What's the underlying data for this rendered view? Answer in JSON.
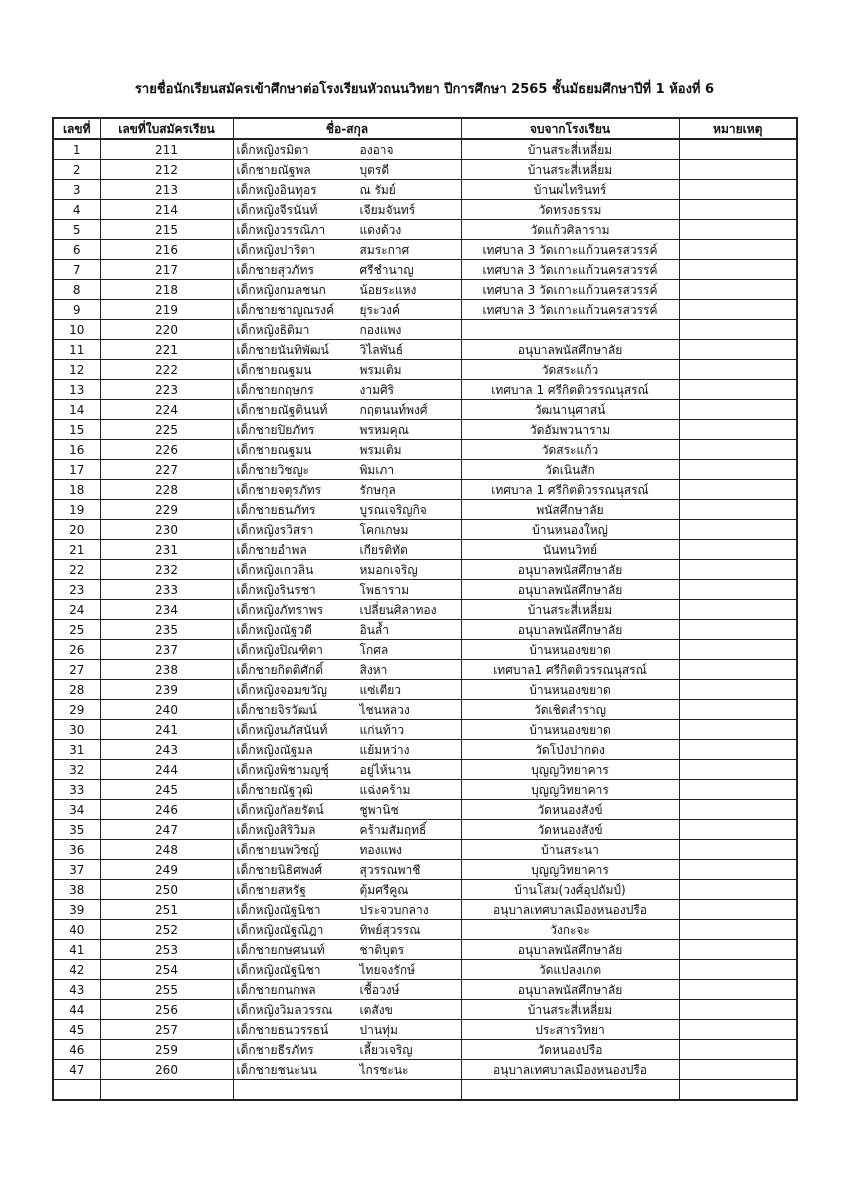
{
  "title": "รายชื่อนักเรียนสมัครเข้าศึกษาต่อโรงเรียนหัวถนนวิทยา  ปีการศึกษา 2565  ชั้นมัธยมศึกษาปีที่  1 ห้องที่ 6",
  "headers": [
    "เลขที่",
    "เลขที่ใบสมัครเรียน",
    "ชื่อ-สกุล",
    "จบจากโรงเรียน",
    "หมายเหตุ"
  ],
  "rows": [
    [
      "1",
      "211",
      "เด็กหญิงรมิตา",
      "องอาจ",
      "บ้านสระสี่เหลี่ยม",
      ""
    ],
    [
      "2",
      "212",
      "เด็กชายณัฐพล",
      "บุตรดี",
      "บ้านสระสี่เหลี่ยม",
      ""
    ],
    [
      "3",
      "213",
      "เด็กหญิงอินทุอร",
      "ณ รัมย์",
      "บ้านผไทรินทร์",
      ""
    ],
    [
      "4",
      "214",
      "เด็กหญิงจีรนันท์",
      "เจียมจันทร์",
      "วัดทรงธรรม",
      ""
    ],
    [
      "5",
      "215",
      "เด็กหญิงวรรณิภา",
      "แดงด้วง",
      "วัดแก้วศิลาราม",
      ""
    ],
    [
      "6",
      "216",
      "เด็กหญิงปาริตา",
      "สมระกาศ",
      "เทศบาล 3 วัดเกาะแก้วนครสวรรค์",
      ""
    ],
    [
      "7",
      "217",
      "เด็กชายสุวภัทร",
      "ศรีชำนาญ",
      "เทศบาล 3 วัดเกาะแก้วนครสวรรค์",
      ""
    ],
    [
      "8",
      "218",
      "เด็กหญิงกมลชนก",
      "น้อยระแหง",
      "เทศบาล 3 วัดเกาะแก้วนครสวรรค์",
      ""
    ],
    [
      "9",
      "219",
      "เด็กชายชาญณรงค์",
      "ยุระวงค์",
      "เทศบาล 3 วัดเกาะแก้วนครสวรรค์",
      ""
    ],
    [
      "10",
      "220",
      "เด็กหญิงธิติมา",
      "กองแพง",
      "",
      ""
    ],
    [
      "11",
      "221",
      "เด็กชายนันทิพัฒน์",
      "วิไลพันธ์",
      "อนุบาลพนัสศึกษาลัย",
      ""
    ],
    [
      "12",
      "222",
      "เด็กชายณฐมน",
      "พรมเติม",
      "วัดสระแก้ว",
      ""
    ],
    [
      "13",
      "223",
      "เด็กชายกฤษกร",
      "งามศิริ",
      "เทศบาล 1 ศรีกิตติวรรณนุสรณ์",
      ""
    ],
    [
      "14",
      "224",
      "เด็กชายณัฐตินนท์",
      "กฤตนนท์พงศ์",
      "วัฒนานุศาสน์",
      ""
    ],
    [
      "15",
      "225",
      "เด็กชายปิยภัทร",
      "พรหมคุณ",
      "วัดอัมพวนาราม",
      ""
    ],
    [
      "16",
      "226",
      "เด็กชายณฐมน",
      "พรมเติม",
      "วัดสระแก้ว",
      ""
    ],
    [
      "17",
      "227",
      "เด็กชายวิชญะ",
      "พิมเภา",
      "วัดเนินสัก",
      ""
    ],
    [
      "18",
      "228",
      "เด็กชายจตุรภัทร",
      "รักษกุล",
      "เทศบาล 1 ศรีกิตติวรรณนุสรณ์",
      ""
    ],
    [
      "19",
      "229",
      "เด็กชายธนภัทร",
      "บูรณเจริญกิจ",
      "พนัสศึกษาลัย",
      ""
    ],
    [
      "20",
      "230",
      "เด็กหญิงรวิสรา",
      "โคกเกษม",
      "บ้านหนองใหญ่",
      ""
    ],
    [
      "21",
      "231",
      "เด็กชายอำพล",
      "เกียรติทัต",
      "นันทนวิทย์",
      ""
    ],
    [
      "22",
      "232",
      "เด็กหญิงเกวลิน",
      "หมอกเจริญ",
      "อนุบาลพนัสศึกษาลัย",
      ""
    ],
    [
      "23",
      "233",
      "เด็กหญิงรินรชา",
      "โพธาราม",
      "อนุบาลพนัสศึกษาลัย",
      ""
    ],
    [
      "24",
      "234",
      "เด็กหญิงภัทราพร",
      "เปลี่ยนศิลาทอง",
      "บ้านสระสี่เหลี่ยม",
      ""
    ],
    [
      "25",
      "235",
      "เด็กหญิงณัฐวดี",
      "อินล้ำ",
      "อนุบาลพนัสศึกษาลัย",
      ""
    ],
    [
      "26",
      "237",
      "เด็กหญิงปิณฑิตา",
      "โกศล",
      "บ้านหนองขยาด",
      ""
    ],
    [
      "27",
      "238",
      "เด็กชายกิตติศักดิ์",
      "สิงหา",
      "เทศบาล1 ศรีกิตติวรรณนุสรณ์",
      ""
    ],
    [
      "28",
      "239",
      "เด็กหญิงจอมขวัญ",
      "แซ่เตียว",
      "บ้านหนองขยาด",
      ""
    ],
    [
      "29",
      "240",
      "เด็กชายจิรวัฒน์",
      "ไชนหลวง",
      "วัดเชิดสำราญ",
      ""
    ],
    [
      "30",
      "241",
      "เด็กหญิงนภัสนันท์",
      "แก่นท้าว",
      "บ้านหนองขยาด",
      ""
    ],
    [
      "31",
      "243",
      "เด็กหญิงณัฐมล",
      "แย้มหว่าง",
      "วัดโป่งปากดง",
      ""
    ],
    [
      "32",
      "244",
      "เด็กหญิงพิชามญชุ์",
      "อยู่ไห้นาน",
      "บุญญวิทยาคาร",
      ""
    ],
    [
      "33",
      "245",
      "เด็กชายณัฐวุฒิ",
      "แฉ่งคร้าม",
      "บุญญวิทยาคาร",
      ""
    ],
    [
      "34",
      "246",
      "เด็กหญิงกัลยรัตน์",
      "ชูพานิช",
      "วัดหนองสังข์",
      ""
    ],
    [
      "35",
      "247",
      "เด็กหญิงสิริวิมล",
      "คร้ามสัมฤทธิ์",
      "วัดหนองสังข์",
      ""
    ],
    [
      "36",
      "248",
      "เด็กชายนพวิชญ์",
      "ทองแพง",
      "บ้านสระนา",
      ""
    ],
    [
      "37",
      "249",
      "เด็กชายนิธิศพงศ์",
      "สุวรรณพาชี",
      "บุญญวิทยาคาร",
      ""
    ],
    [
      "38",
      "250",
      "เด็กชายสหรัฐ",
      "ตุ้มศรีคูณ",
      "บ้านโสม(วงศ์อุปถัมป์)",
      ""
    ],
    [
      "39",
      "251",
      "เด็กหญิงณัฐนิชา",
      "ประจวบกลาง",
      "อนุบาลเทศบาลเมืองหนองปรือ",
      ""
    ],
    [
      "40",
      "252",
      "เด็กหญิงณัฐณิฎา",
      "ทิพย์สุวรรณ",
      "วังกะจะ",
      ""
    ],
    [
      "41",
      "253",
      "เด็กชายกษศนนท์",
      "ชาติบุตร",
      "อนุบาลพนัสศึกษาลัย",
      ""
    ],
    [
      "42",
      "254",
      "เด็กหญิงณัฐนิชา",
      "ไทยจงรักษ์",
      "วัดแปลงเกต",
      ""
    ],
    [
      "43",
      "255",
      "เด็กชายกนกพล",
      "เชื้อวงษ์",
      "อนุบาลพนัสศึกษาลัย",
      ""
    ],
    [
      "44",
      "256",
      "เด็กหญิงวิมลวรรณ",
      "เตสังข",
      "บ้านสระสี่เหลี่ยม",
      ""
    ],
    [
      "45",
      "257",
      "เด็กชายธนวรรธน์",
      "ปานทุ่ม",
      "ประสารวิทยา",
      ""
    ],
    [
      "46",
      "259",
      "เด็กชายธีรภัทร",
      "เลี้ยวเจริญ",
      "วัดหนองปรือ",
      ""
    ],
    [
      "47",
      "260",
      "เด็กชายชนะนน",
      "ไกรชะนะ",
      "อนุบาลเทศบาลเมืองหนองปรือ",
      ""
    ],
    [
      "",
      "",
      "",
      "",
      "",
      ""
    ]
  ]
}
